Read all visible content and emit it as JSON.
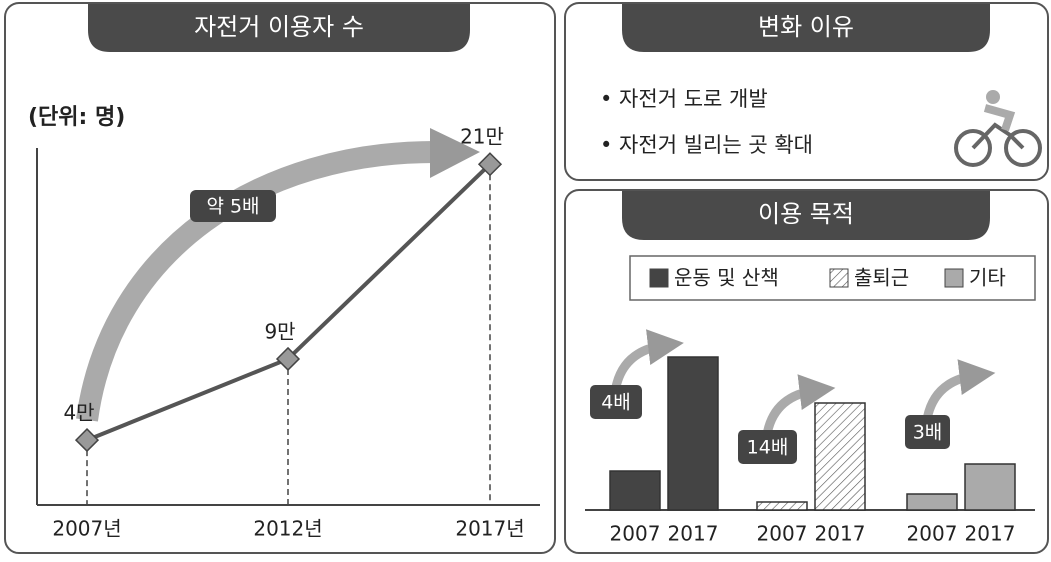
{
  "chart_data": [
    {
      "type": "line",
      "title": "자전거 이용자 수",
      "unit_label": "(단위: 명)",
      "categories": [
        "2007년",
        "2012년",
        "2017년"
      ],
      "values": [
        4,
        9,
        21
      ],
      "value_labels": [
        "4만",
        "9만",
        "21만"
      ],
      "ylim": [
        0,
        22
      ],
      "color": "#555555",
      "marker_color": "#999999",
      "annotation": "약 5배"
    },
    {
      "type": "bar",
      "title": "이용 목적",
      "categories": [
        "2007",
        "2017"
      ],
      "series": [
        {
          "name": "운동 및 산책",
          "color": "#444444",
          "values": [
            39,
            153
          ]
        },
        {
          "name": "출퇴근",
          "color": "hatch",
          "values": [
            8,
            107
          ]
        },
        {
          "name": "기타",
          "color": "#aaaaaa",
          "values": [
            16,
            46
          ]
        }
      ],
      "ylim": [
        0,
        160
      ],
      "annotations": [
        "4배",
        "14배",
        "3배"
      ]
    }
  ],
  "reasons": {
    "title": "변화 이유",
    "items": [
      "• 자전거 도로 개발",
      "• 자전거 빌리는 곳 확대"
    ]
  }
}
